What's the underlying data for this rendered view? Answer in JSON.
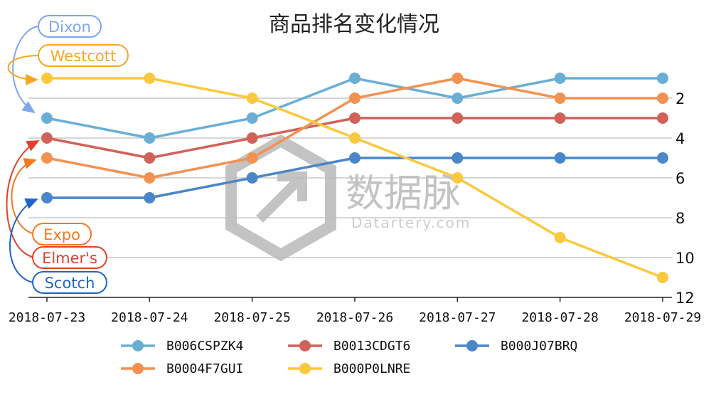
{
  "chart_data": {
    "type": "line",
    "title": "商品排名变化情况",
    "xlabel": "",
    "ylabel": "",
    "categories": [
      "2018-07-23",
      "2018-07-24",
      "2018-07-25",
      "2018-07-26",
      "2018-07-27",
      "2018-07-28",
      "2018-07-29"
    ],
    "y_ticks": [
      "2",
      "4",
      "6",
      "8",
      "10",
      "12"
    ],
    "y_range": [
      0,
      12
    ],
    "y_inverted": true,
    "grid": "horizontal",
    "legend_position": "bottom",
    "series": [
      {
        "name": "B006CSPZK4",
        "color": "#6aaed6",
        "values": [
          3,
          4,
          3,
          1,
          2,
          1,
          1
        ]
      },
      {
        "name": "B0013CDGT6",
        "color": "#d0625a",
        "values": [
          4,
          5,
          4,
          3,
          3,
          3,
          3
        ]
      },
      {
        "name": "B000J07BRQ",
        "color": "#4a86c8",
        "values": [
          7,
          7,
          6,
          5,
          5,
          5,
          5
        ]
      },
      {
        "name": "B0004F7GUI",
        "color": "#f39152",
        "values": [
          5,
          6,
          5,
          2,
          1,
          2,
          2
        ]
      },
      {
        "name": "B000P0LNRE",
        "color": "#fbc93e",
        "values": [
          1,
          1,
          2,
          4,
          6,
          9,
          11
        ]
      }
    ],
    "annotations": [
      {
        "text": "Dixon",
        "series": "B006CSPZK4",
        "color": "#7fa6ee"
      },
      {
        "text": "Westcott",
        "series": "B000P0LNRE",
        "color": "#f5a623"
      },
      {
        "text": "Expo",
        "series": "B0004F7GUI",
        "color": "#f47920"
      },
      {
        "text": "Elmer's",
        "series": "B0013CDGT6",
        "color": "#e0412a"
      },
      {
        "text": "Scotch",
        "series": "B000J07BRQ",
        "color": "#1f64c8"
      }
    ]
  },
  "watermark": {
    "main": "数据脉",
    "sub": "Datartery.com"
  }
}
